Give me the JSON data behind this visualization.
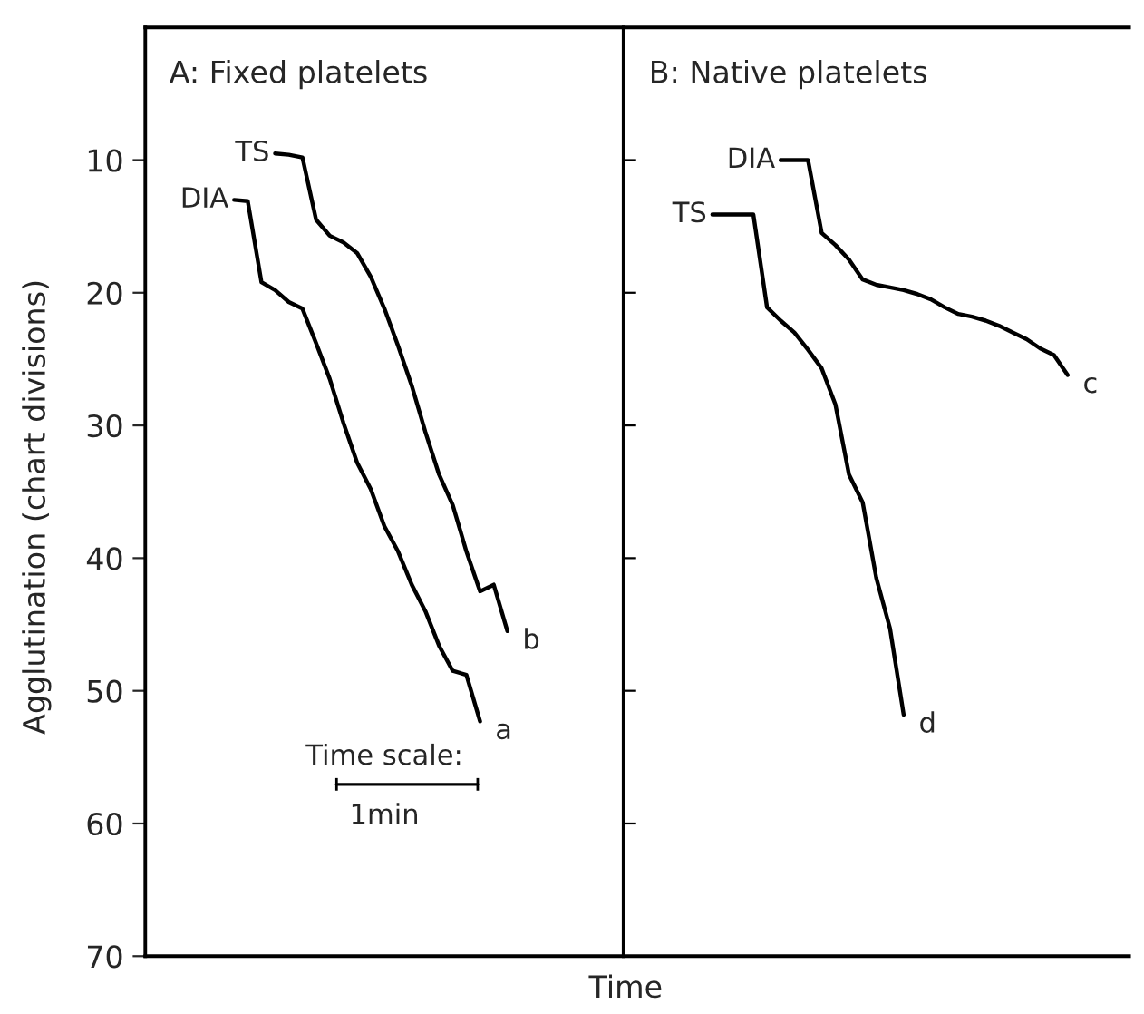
{
  "chart_data": {
    "type": "line",
    "ylabel": "Agglutination (chart divisions)",
    "xlabel": "Time",
    "ylim": [
      70,
      0
    ],
    "yticks": [
      10,
      20,
      30,
      40,
      50,
      60,
      70
    ],
    "tick_labels": "y",
    "grid": false,
    "legend": false,
    "categories": [
      null,
      null,
      null,
      null,
      null,
      null,
      null,
      null,
      null,
      null,
      null,
      null,
      null,
      null,
      null,
      null,
      null,
      null,
      null,
      null,
      null,
      null,
      null,
      null,
      null,
      null,
      null,
      null,
      null,
      null,
      null,
      null,
      null,
      null,
      null,
      null,
      null,
      null,
      null,
      null,
      null,
      null,
      null,
      null,
      null,
      null,
      null,
      null,
      null,
      null,
      null,
      null,
      null,
      null,
      null,
      null,
      null,
      null,
      null,
      null,
      null,
      null,
      null,
      null,
      null,
      null,
      null,
      null,
      null,
      null,
      null,
      null
    ],
    "series": [
      {
        "name": "TS",
        "color": "#000000",
        "values": [
          null,
          null,
          null,
          null,
          null,
          null,
          null,
          null,
          null,
          9.5,
          9.6,
          9.8,
          14.5,
          15.7,
          16.2,
          17.0,
          18.8,
          21.2,
          24.0,
          27.0,
          30.5,
          33.7,
          36.0,
          39.5,
          42.5,
          42.0,
          45.5,
          null,
          null,
          null,
          null,
          null,
          null,
          null,
          null,
          null,
          null,
          null,
          null,
          null,
          null,
          null,
          null,
          null,
          null,
          null,
          null,
          null,
          null,
          null,
          null,
          null,
          null,
          null,
          null,
          null,
          null,
          null,
          null,
          null,
          null,
          null,
          null,
          null,
          null,
          null,
          null,
          null,
          null,
          null,
          null,
          null
        ]
      },
      {
        "name": "DIA",
        "color": "#000000",
        "values": [
          null,
          null,
          null,
          null,
          null,
          null,
          13.0,
          13.1,
          19.2,
          19.8,
          20.7,
          21.2,
          23.8,
          26.5,
          29.8,
          32.8,
          34.8,
          37.6,
          39.5,
          42.0,
          44.0,
          46.6,
          48.5,
          48.8,
          52.3,
          null,
          null,
          null,
          null,
          null,
          null,
          null,
          null,
          null,
          null,
          null,
          null,
          null,
          null,
          null,
          null,
          null,
          null,
          null,
          null,
          null,
          null,
          null,
          null,
          null,
          null,
          null,
          null,
          null,
          null,
          null,
          null,
          null,
          null,
          null,
          null,
          null,
          null,
          null,
          null,
          null,
          null,
          null,
          null,
          null,
          null,
          null
        ]
      },
      {
        "name": "TS",
        "color": "#000000",
        "values": [
          null,
          null,
          null,
          null,
          null,
          null,
          null,
          null,
          null,
          null,
          null,
          null,
          null,
          null,
          null,
          null,
          null,
          null,
          null,
          null,
          null,
          null,
          null,
          null,
          null,
          null,
          null,
          null,
          null,
          null,
          null,
          null,
          null,
          null,
          null,
          null,
          null,
          null,
          null,
          null,
          null,
          14.1,
          14.1,
          14.1,
          14.1,
          21.1,
          22.1,
          23.0,
          24.3,
          25.7,
          28.4,
          33.7,
          35.8,
          41.5,
          45.3,
          51.8,
          null,
          null,
          null,
          null,
          null,
          null,
          null,
          null,
          null,
          null,
          null,
          null,
          null,
          null,
          null,
          null
        ]
      },
      {
        "name": "DIA",
        "color": "#000000",
        "values": [
          null,
          null,
          null,
          null,
          null,
          null,
          null,
          null,
          null,
          null,
          null,
          null,
          null,
          null,
          null,
          null,
          null,
          null,
          null,
          null,
          null,
          null,
          null,
          null,
          null,
          null,
          null,
          null,
          null,
          null,
          null,
          null,
          null,
          null,
          null,
          null,
          null,
          null,
          null,
          null,
          null,
          null,
          null,
          null,
          null,
          null,
          10,
          10,
          10,
          15.5,
          16.4,
          17.5,
          19.0,
          19.4,
          19.6,
          19.8,
          20.1,
          20.5,
          21.1,
          21.6,
          21.8,
          22.1,
          22.5,
          23.0,
          23.5,
          24.2,
          24.7,
          26.2,
          null,
          null,
          null,
          null
        ]
      }
    ],
    "annotations": [
      "b",
      "a",
      "d",
      "c",
      "A: Fixed platelets",
      "B: Native platelets",
      "Time scale:",
      "1min"
    ]
  }
}
